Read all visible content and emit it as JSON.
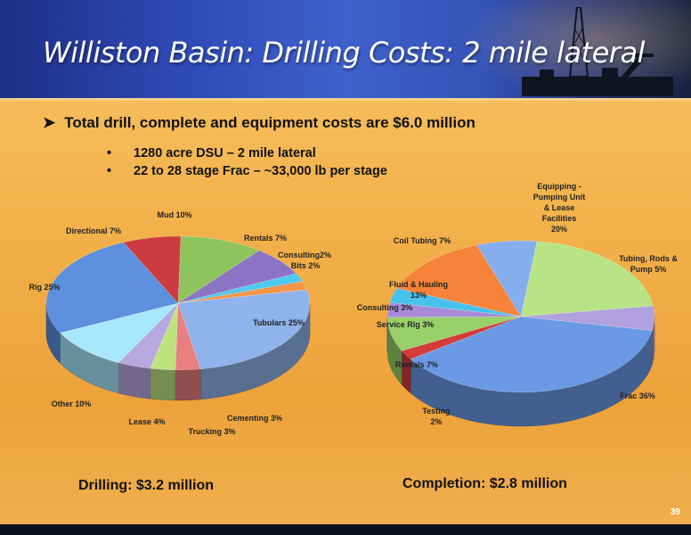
{
  "slide": {
    "title": "Williston Basin: Drilling Costs: 2 mile lateral",
    "main_bullet": "Total drill, complete and equipment costs are $6.0 million",
    "sub_bullets": [
      "1280 acre DSU – 2 mile lateral",
      "22 to 28 stage Frac – ~33,000 lb per stage"
    ],
    "page_number": "39"
  },
  "chart_data": [
    {
      "type": "pie",
      "title": "Drilling: $3.2 million",
      "categories": [
        "Mud",
        "Rentals",
        "Consulting",
        "Bits",
        "Tubulars",
        "Cementing",
        "Trucking",
        "Lease",
        "Other",
        "Rig",
        "Directional"
      ],
      "values": [
        10,
        7,
        2,
        2,
        25,
        3,
        3,
        4,
        10,
        25,
        7
      ],
      "data_labels": [
        "Mud 10%",
        "Rentals  7%",
        "Consulting2%",
        "Bits  2%",
        "Tubulars 25%",
        "Cementing  3%",
        "Trucking 3%",
        "Lease 4%",
        "Other 10%",
        "Rig 25%",
        "Directional 7%"
      ],
      "colors": [
        "#8dc55c",
        "#8b74c4",
        "#4ec9ef",
        "#f5954a",
        "#8fb3ec",
        "#e87f80",
        "#bde37f",
        "#b8a8e0",
        "#a8e8fb",
        "#5c8fde",
        "#cc3b3f"
      ]
    },
    {
      "type": "pie",
      "title": "Completion: $2.8 million",
      "categories": [
        "Equipping - Pumping Unit & Lease Facilities",
        "Tubing, Rods & Pump",
        "Frac",
        "Testing",
        "Rentals",
        "Service Rig",
        "Consulting",
        "Fluid & Hauling",
        "Coil Tubing"
      ],
      "values": [
        20,
        5,
        36,
        2,
        7,
        3,
        3,
        13,
        7
      ],
      "data_labels": [
        "Equipping -\nPumping Unit\n& Lease\nFacilities\n20%",
        "Tubing, Rods &\nPump  5%",
        "Frac  36%",
        "Testing\n2%",
        "Rentals  7%",
        "Service Rig  3%",
        "Consulting 3%",
        "Fluid & Hauling\n13%",
        "Coil Tubing 7%"
      ],
      "colors": [
        "#b8e486",
        "#b0a0dd",
        "#6a9ae6",
        "#d43c3c",
        "#98d06a",
        "#a88ad8",
        "#48c2ec",
        "#f5833a",
        "#86aeee"
      ]
    }
  ]
}
